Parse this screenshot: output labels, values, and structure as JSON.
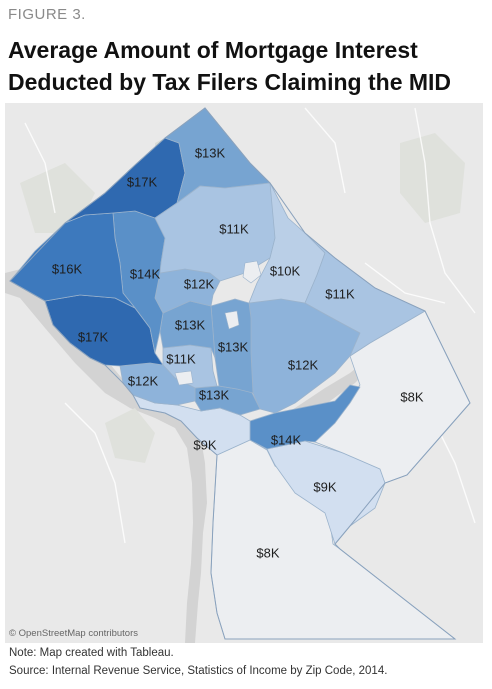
{
  "figure_label": "FIGURE 3.",
  "title_line1": "Average Amount of Mortgage Interest",
  "title_line2": "Deducted by Tax Filers Claiming the MID",
  "attribution": "© OpenStreetMap contributors",
  "note": "Note: Map created with Tableau.",
  "source": "Source: Internal Revenue Service, Statistics of Income by Zip Code, 2014.",
  "colors": {
    "k8": "#eceef1",
    "k9": "#d2dff0",
    "k10": "#bacfe7",
    "k11": "#a9c4e2",
    "k12": "#8eb3da",
    "k13": "#77a4d1",
    "k14": "#5a90c8",
    "k16": "#3d79bd",
    "k17": "#2f69b0",
    "water": "#d3d3d3",
    "map_background": "#e9e9e9"
  },
  "zip_areas": [
    {
      "id": "z-13k-north",
      "label": "$13K",
      "value_k": 13
    },
    {
      "id": "z-17k-north",
      "label": "$17K",
      "value_k": 17
    },
    {
      "id": "z-11k-central",
      "label": "$11K",
      "value_k": 11
    },
    {
      "id": "z-16k-west",
      "label": "$16K",
      "value_k": 16
    },
    {
      "id": "z-14k-west",
      "label": "$14K",
      "value_k": 14
    },
    {
      "id": "z-10k-east",
      "label": "$10K",
      "value_k": 10
    },
    {
      "id": "z-12k-north",
      "label": "$12K",
      "value_k": 12
    },
    {
      "id": "z-11k-east",
      "label": "$11K",
      "value_k": 11
    },
    {
      "id": "z-13k-central",
      "label": "$13K",
      "value_k": 13
    },
    {
      "id": "z-17k-south",
      "label": "$17K",
      "value_k": 17
    },
    {
      "id": "z-13k-east",
      "label": "$13K",
      "value_k": 13
    },
    {
      "id": "z-12k-east",
      "label": "$12K",
      "value_k": 12
    },
    {
      "id": "z-11k-downtown",
      "label": "$11K",
      "value_k": 11
    },
    {
      "id": "z-12k-georgetown",
      "label": "$12K",
      "value_k": 12
    },
    {
      "id": "z-13k-capitol",
      "label": "$13K",
      "value_k": 13
    },
    {
      "id": "z-8k-east",
      "label": "$8K",
      "value_k": 8
    },
    {
      "id": "z-9k-southwest",
      "label": "$9K",
      "value_k": 9
    },
    {
      "id": "z-14k-southeast",
      "label": "$14K",
      "value_k": 14
    },
    {
      "id": "z-9k-southeast",
      "label": "$9K",
      "value_k": 9
    },
    {
      "id": "z-8k-south",
      "label": "$8K",
      "value_k": 8
    }
  ]
}
